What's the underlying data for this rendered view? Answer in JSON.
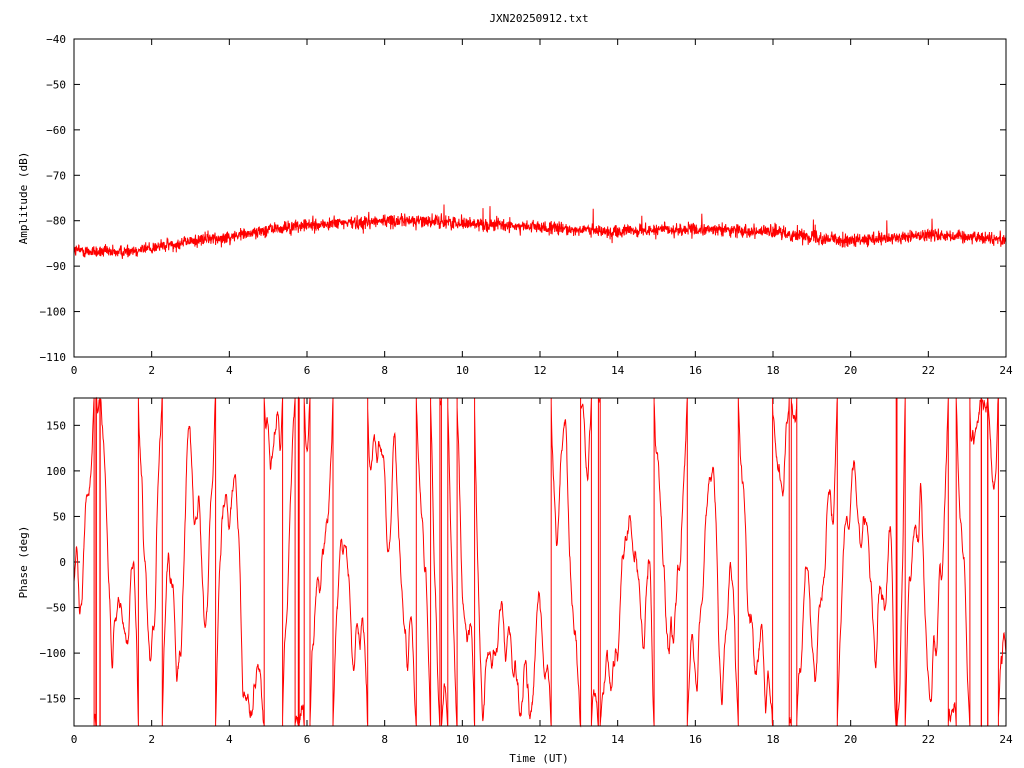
{
  "title": "JXN20250912.txt",
  "chart_data": [
    {
      "type": "line",
      "name": "amplitude",
      "ylabel": "Amplitude (dB)",
      "xlabel": "",
      "xlim": [
        0,
        24
      ],
      "ylim": [
        -110,
        -40
      ],
      "x_ticks": [
        0,
        2,
        4,
        6,
        8,
        10,
        12,
        14,
        16,
        18,
        20,
        22,
        24
      ],
      "y_ticks": [
        -40,
        -50,
        -60,
        -70,
        -80,
        -90,
        -100,
        -110
      ],
      "series_color": "#ff0000",
      "noise_band_db": 2.5,
      "envelope": {
        "x": [
          0,
          1,
          2,
          3,
          4,
          5,
          6,
          7,
          8,
          9,
          10,
          11,
          12,
          13,
          14,
          15,
          16,
          17,
          18,
          19,
          20,
          21,
          22,
          23,
          24
        ],
        "y": [
          -86.5,
          -87,
          -86,
          -84.5,
          -83.5,
          -82,
          -81,
          -80.5,
          -80,
          -80,
          -80.5,
          -81,
          -81.5,
          -82,
          -82.5,
          -82,
          -82,
          -82,
          -82.5,
          -83.5,
          -84.5,
          -84,
          -83,
          -83.5,
          -84
        ]
      }
    },
    {
      "type": "line",
      "name": "phase",
      "ylabel": "Phase (deg)",
      "xlabel": "Time (UT)",
      "xlim": [
        0,
        24
      ],
      "ylim": [
        -180,
        180
      ],
      "x_ticks": [
        0,
        2,
        4,
        6,
        8,
        10,
        12,
        14,
        16,
        18,
        20,
        22,
        24
      ],
      "y_ticks": [
        150,
        100,
        50,
        0,
        -50,
        -100,
        -150
      ],
      "series_color": "#ff0000",
      "wrap": [
        -180,
        180
      ]
    }
  ]
}
